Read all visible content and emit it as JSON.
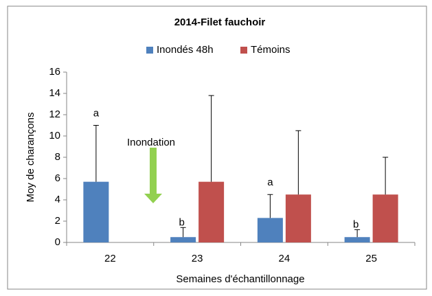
{
  "chart_data": {
    "type": "bar",
    "title": "2014-Filet fauchoir",
    "x_label": "Semaines d'échantillonnage",
    "y_label": "Moy de charançons",
    "categories": [
      "22",
      "23",
      "24",
      "25"
    ],
    "series": [
      {
        "name": "Inondés 48h",
        "color": "#4f81bd",
        "values": [
          5.7,
          0.5,
          2.3,
          0.5
        ],
        "errors": [
          5.3,
          0.9,
          2.2,
          0.7
        ]
      },
      {
        "name": "Témoins",
        "color": "#c0504d",
        "values": [
          null,
          5.7,
          4.5,
          4.5
        ],
        "errors": [
          null,
          8.1,
          6.0,
          3.5
        ]
      }
    ],
    "ylim": [
      0,
      16
    ],
    "yticks": [
      0,
      2,
      4,
      6,
      8,
      10,
      12,
      14,
      16
    ],
    "grid": false,
    "legend": "top",
    "annotations": [
      {
        "category": 0,
        "text": "a"
      },
      {
        "category": 1,
        "text": "b"
      },
      {
        "category": 2,
        "text": "a"
      },
      {
        "category": 3,
        "text": "b"
      }
    ],
    "event_label": "Inondation"
  }
}
